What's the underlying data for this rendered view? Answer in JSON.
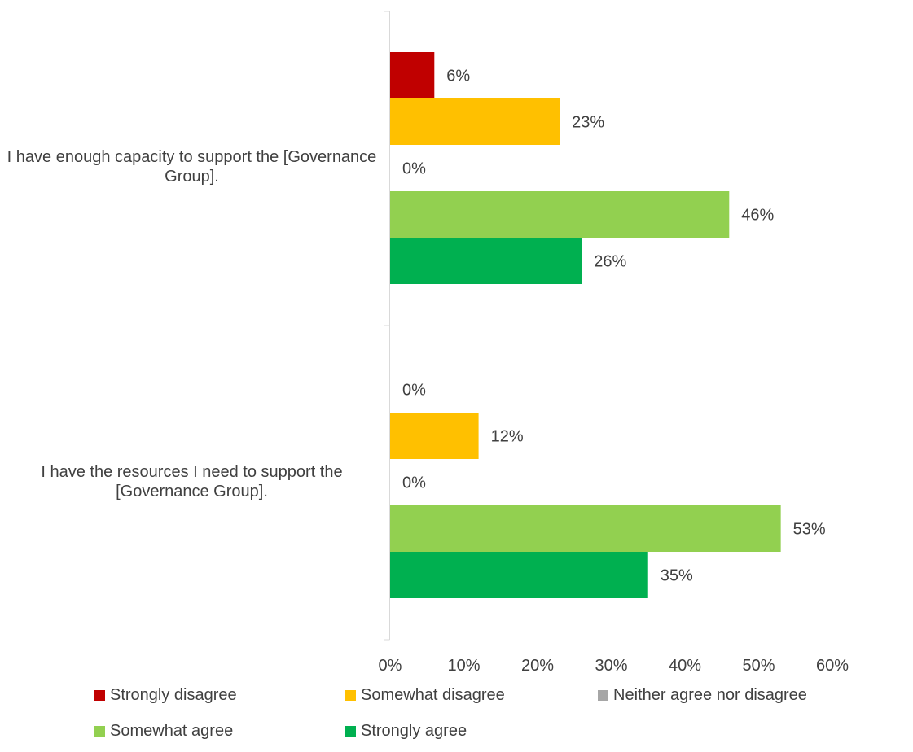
{
  "chart_data": {
    "type": "bar",
    "orientation": "horizontal",
    "categories": [
      "I have enough capacity to support the [Governance Group].",
      "I have the resources I need to support the [Governance Group]."
    ],
    "series": [
      {
        "name": "Strongly disagree",
        "color": "#C00000",
        "values": [
          6,
          0
        ],
        "labels": [
          "6%",
          "0%"
        ]
      },
      {
        "name": "Somewhat disagree",
        "color": "#FFC000",
        "values": [
          23,
          12
        ],
        "labels": [
          "23%",
          "12%"
        ]
      },
      {
        "name": "Neither agree nor disagree",
        "color": "#A6A6A6",
        "values": [
          0,
          0
        ],
        "labels": [
          "0%",
          "0%"
        ]
      },
      {
        "name": "Somewhat agree",
        "color": "#92D050",
        "values": [
          46,
          53
        ],
        "labels": [
          "46%",
          "53%"
        ]
      },
      {
        "name": "Strongly agree",
        "color": "#00B050",
        "values": [
          26,
          35
        ],
        "labels": [
          "26%",
          "35%"
        ]
      }
    ],
    "xlim": [
      0,
      60
    ],
    "xticks": [
      "0%",
      "10%",
      "20%",
      "30%",
      "40%",
      "50%",
      "60%"
    ],
    "grid": false,
    "legend_position": "bottom"
  }
}
